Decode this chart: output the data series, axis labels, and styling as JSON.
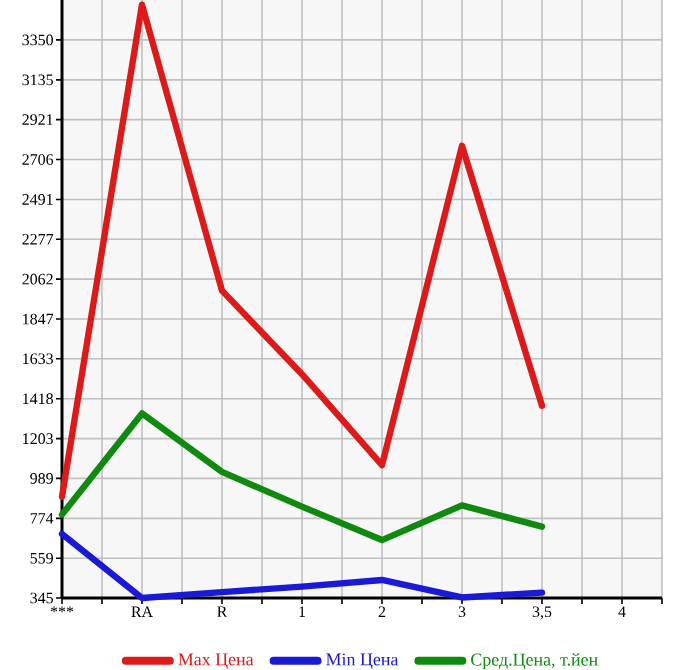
{
  "chart_data": {
    "type": "line",
    "categories": [
      "***",
      "RA",
      "R",
      "1",
      "2",
      "3",
      "3,5",
      "4"
    ],
    "series": [
      {
        "name": "Max Цена",
        "color": "#dd1a1a",
        "values": [
          890,
          3540,
          2000,
          1550,
          1060,
          2780,
          1380,
          null
        ]
      },
      {
        "name": "Min Цена",
        "color": "#1a1ad6",
        "values": [
          690,
          345,
          377,
          406,
          442,
          348,
          374,
          null
        ]
      },
      {
        "name": "Сред.Цена, т.йен",
        "color": "#0f8a0f",
        "values": [
          794,
          1339,
          1024,
          837,
          657,
          844,
          729,
          null
        ]
      }
    ],
    "ylim": [
      345,
      3565
    ],
    "yticks": [
      345,
      559,
      774,
      989,
      1203,
      1418,
      1633,
      1847,
      2062,
      2277,
      2491,
      2706,
      2921,
      3135,
      3350
    ],
    "grid": true,
    "legend": "bottom",
    "marker": "none",
    "line_style": "solid"
  }
}
